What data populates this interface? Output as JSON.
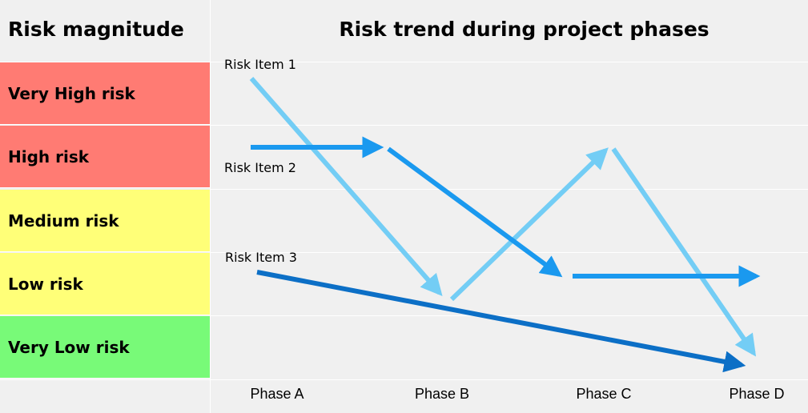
{
  "left_header": "Risk magnitude",
  "title": "Risk trend during project phases",
  "levels": [
    {
      "label": "Very High risk",
      "color": "#ff7b73"
    },
    {
      "label": "High risk",
      "color": "#ff7b73"
    },
    {
      "label": "Medium risk",
      "color": "#ffff78"
    },
    {
      "label": "Low risk",
      "color": "#ffff78"
    },
    {
      "label": "Very Low risk",
      "color": "#78fa78"
    }
  ],
  "phases": [
    "Phase A",
    "Phase B",
    "Phase C",
    "Phase D"
  ],
  "items": [
    {
      "label": "Risk Item 1",
      "color": "#73cdf5",
      "trend": [
        "Very High risk",
        "Low risk",
        "High risk",
        "Very Low risk"
      ]
    },
    {
      "label": "Risk Item 2",
      "color": "#1a99ef",
      "trend": [
        "High risk",
        "High risk",
        "Low risk",
        "Low risk"
      ]
    },
    {
      "label": "Risk Item 3",
      "color": "#0c6fc6",
      "trend": [
        "Low risk",
        "Very Low risk"
      ]
    }
  ]
}
